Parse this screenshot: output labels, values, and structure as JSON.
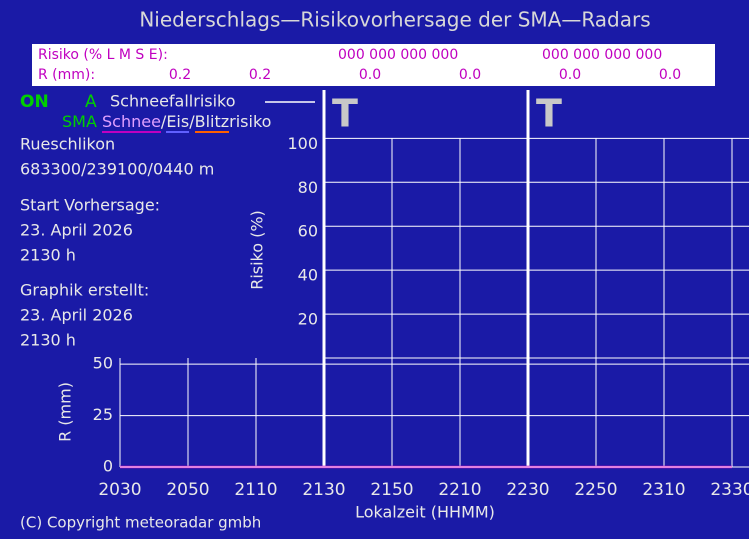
{
  "title": "Niederschlags—Risikovorhersage der SMA—Radars",
  "summary": {
    "risk_label": "Risiko (% L M S E):",
    "risk_values": [
      "000  000  000  000",
      "000  000  000  000"
    ],
    "rain_label": "R (mm):",
    "rain_values": [
      "0.2",
      "0.2",
      "0.0",
      "0.0",
      "0.0",
      "0.0"
    ]
  },
  "legend": {
    "on": "ON",
    "a": "A",
    "snow_risk": "Schneefallrisiko",
    "sma": "SMA",
    "schnee": "Schnee",
    "slash1": "/",
    "eis": "Eis",
    "slash2": "/",
    "blitz": "Blitz",
    "risiko": "risiko"
  },
  "info": [
    "Rueschlikon",
    "683300/239100/0440 m",
    "Start Vorhersage:",
    "23. April 2026",
    "2130 h",
    "Graphik erstellt:",
    "23. April 2026",
    "2130 h"
  ],
  "copyright": "(C) Copyright meteoradar gmbh",
  "chart_data": [
    {
      "type": "line",
      "ylabel": "Risiko (%)",
      "ylim": [
        0,
        122
      ],
      "yticks": [
        20,
        40,
        60,
        80,
        100
      ],
      "grid": true,
      "annotations": [
        "T",
        "T"
      ]
    },
    {
      "type": "line",
      "ylabel": "R (mm)",
      "xlabel": "Lokalzeit (HHMM)",
      "categories": [
        "2030",
        "2050",
        "2110",
        "2130",
        "2150",
        "2210",
        "2230",
        "2250",
        "2310",
        "2330"
      ],
      "ylim": [
        0,
        53
      ],
      "yticks": [
        0,
        25,
        50
      ],
      "grid": true,
      "series": [
        {
          "color": "#c000c0",
          "values": [
            0,
            0,
            0,
            0,
            0,
            0,
            0,
            0,
            0,
            0
          ]
        }
      ]
    }
  ]
}
